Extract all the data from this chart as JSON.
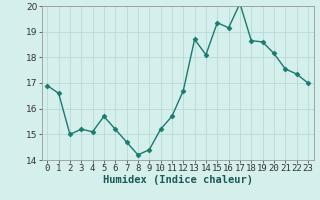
{
  "x": [
    0,
    1,
    2,
    3,
    4,
    5,
    6,
    7,
    8,
    9,
    10,
    11,
    12,
    13,
    14,
    15,
    16,
    17,
    18,
    19,
    20,
    21,
    22,
    23
  ],
  "y": [
    16.9,
    16.6,
    15.0,
    15.2,
    15.1,
    15.7,
    15.2,
    14.7,
    14.2,
    14.4,
    15.2,
    15.7,
    16.7,
    18.7,
    18.1,
    19.35,
    19.15,
    20.1,
    18.65,
    18.6,
    18.15,
    17.55,
    17.35,
    17.0
  ],
  "line_color": "#1a7a6e",
  "marker": "D",
  "marker_size": 2.5,
  "xlabel": "Humidex (Indice chaleur)",
  "ylim": [
    14,
    20
  ],
  "xlim": [
    -0.5,
    23.5
  ],
  "yticks": [
    14,
    15,
    16,
    17,
    18,
    19,
    20
  ],
  "xtick_labels": [
    "0",
    "1",
    "2",
    "3",
    "4",
    "5",
    "6",
    "7",
    "8",
    "9",
    "10",
    "11",
    "12",
    "13",
    "14",
    "15",
    "16",
    "17",
    "18",
    "19",
    "20",
    "21",
    "22",
    "23"
  ],
  "bg_color": "#d5efec",
  "grid_color": "#b8dbd8",
  "label_fontsize": 7.5,
  "tick_fontsize": 6.5
}
